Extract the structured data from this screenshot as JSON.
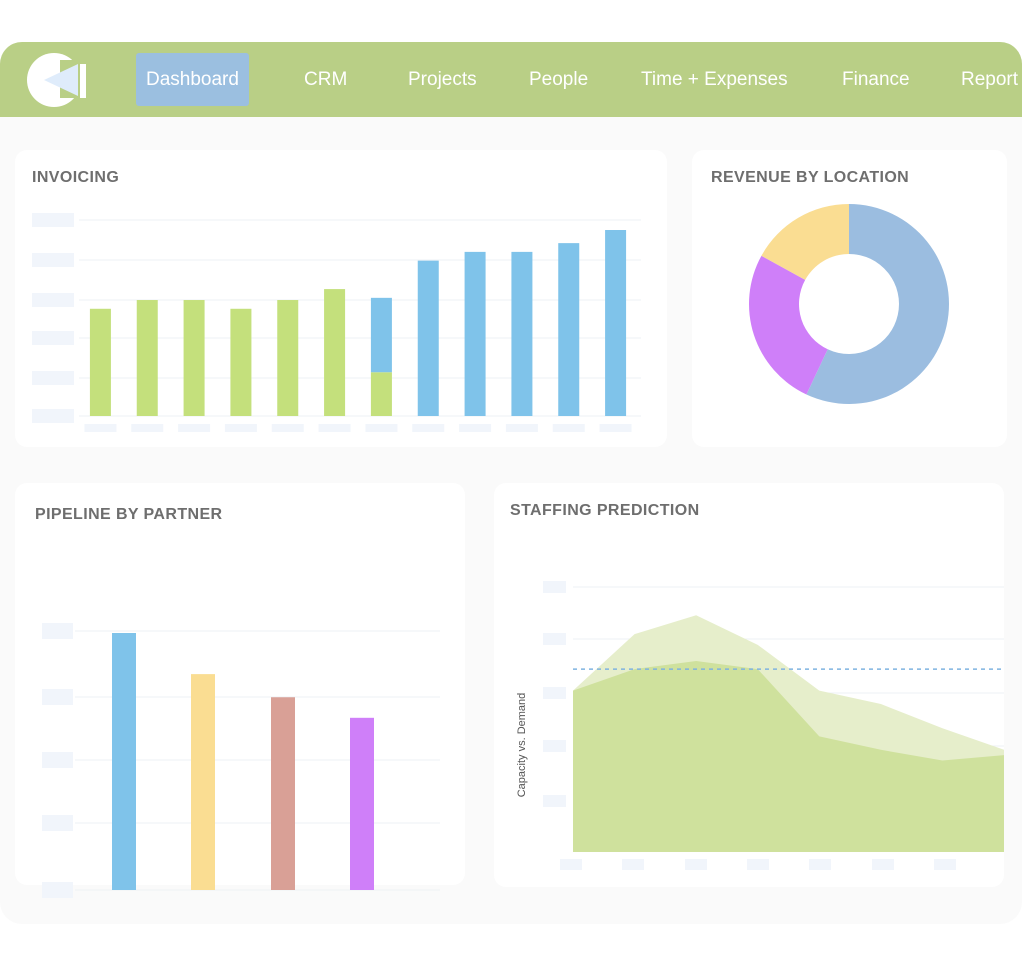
{
  "nav": {
    "items": [
      {
        "label": "Dashboard",
        "active": true
      },
      {
        "label": "CRM",
        "active": false
      },
      {
        "label": "Projects",
        "active": false
      },
      {
        "label": "People",
        "active": false
      },
      {
        "label": "Time + Expenses",
        "active": false
      },
      {
        "label": "Finance",
        "active": false
      },
      {
        "label": "Report",
        "active": false
      }
    ]
  },
  "colors": {
    "nav_bg": "#b9cf86",
    "active_tab": "#9bbfe0",
    "green": "#c4e07c",
    "blue": "#7fc3ea",
    "yellow": "#fadd92",
    "purple": "#cf7ff9",
    "rose": "#d9a096",
    "donut_blue": "#9bbde0"
  },
  "cards": {
    "invoicing": {
      "title": "INVOICING"
    },
    "revenue": {
      "title": "REVENUE BY LOCATION"
    },
    "pipeline": {
      "title": "PIPELINE BY PARTNER"
    },
    "staffing": {
      "title": "STAFFING PREDICTION"
    }
  },
  "chart_data": [
    {
      "type": "bar",
      "title": "INVOICING",
      "ylim": [
        0,
        8.5
      ],
      "grid": true,
      "categories": [
        "",
        "",
        "",
        "",
        "",
        "",
        "",
        "",
        "",
        "",
        "",
        ""
      ],
      "series": [
        {
          "color": "#c4e07c",
          "values": [
            4.9,
            5.3,
            5.3,
            4.9,
            5.3,
            5.8,
            2.0,
            0,
            0,
            0,
            0,
            0
          ]
        },
        {
          "color": "#7fc3ea",
          "values": [
            0,
            0,
            0,
            0,
            0,
            0,
            3.4,
            7.1,
            7.5,
            7.5,
            7.9,
            8.5
          ]
        }
      ],
      "stacked": true
    },
    {
      "type": "pie",
      "title": "REVENUE BY LOCATION",
      "donut": true,
      "slices": [
        {
          "value": 57,
          "color": "#9bbde0"
        },
        {
          "value": 26,
          "color": "#cf7ff9"
        },
        {
          "value": 17,
          "color": "#fadd92"
        }
      ]
    },
    {
      "type": "bar",
      "title": "PIPELINE BY PARTNER",
      "ylim": [
        0,
        100
      ],
      "grid": true,
      "categories": [
        "",
        "",
        "",
        ""
      ],
      "values": [
        100,
        84,
        75,
        67
      ],
      "colors": [
        "#7fc3ea",
        "#fadd92",
        "#d9a096",
        "#cf7ff9"
      ]
    },
    {
      "type": "area",
      "title": "STAFFING PREDICTION",
      "ylabel": "Capacity vs. Demand",
      "ylim": [
        0,
        100
      ],
      "grid": true,
      "reference_line": 68,
      "series": [
        {
          "color": "#e6eecb",
          "values": [
            60,
            81,
            88,
            77,
            60,
            55,
            46,
            38
          ]
        },
        {
          "color": "#cfe19d",
          "values": [
            60,
            68,
            71,
            68,
            43,
            38,
            34,
            36
          ]
        }
      ]
    }
  ]
}
